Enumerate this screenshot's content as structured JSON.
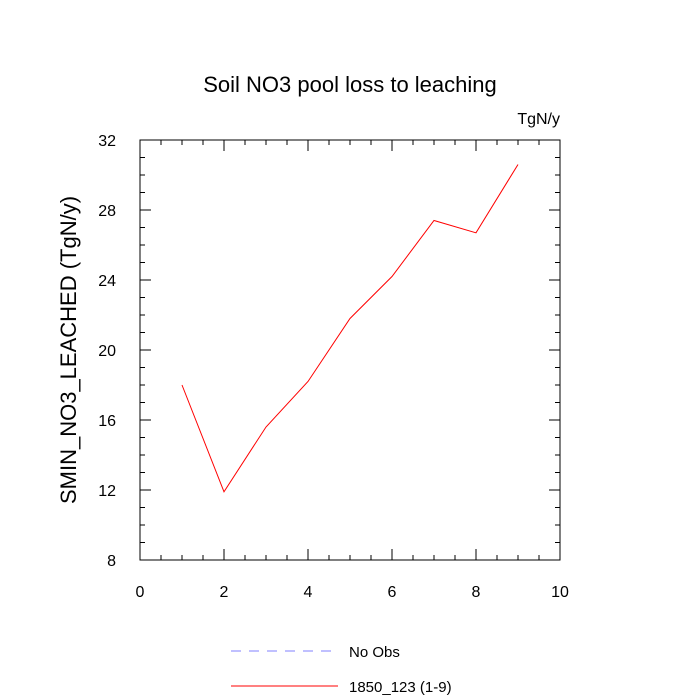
{
  "chart_data": {
    "type": "line",
    "title": "Soil NO3 pool loss to leaching",
    "units": "TgN/y",
    "ylabel": "SMIN_NO3_LEACHED  (TgN/y)",
    "xlabel": "",
    "xlim": [
      0,
      10
    ],
    "ylim": [
      8,
      32
    ],
    "x_ticks": [
      0,
      2,
      4,
      6,
      8,
      10
    ],
    "y_ticks": [
      8,
      12,
      16,
      20,
      24,
      28,
      32
    ],
    "grid": false,
    "legend_position": "bottom",
    "series": [
      {
        "name": "No Obs",
        "color": "#8080ff",
        "dashed": true,
        "x": [],
        "values": []
      },
      {
        "name": "1850_123 (1-9)",
        "color": "#ff0000",
        "dashed": false,
        "x": [
          1,
          2,
          3,
          4,
          5,
          6,
          7,
          8,
          9
        ],
        "values": [
          18.0,
          11.9,
          15.6,
          18.2,
          21.8,
          24.2,
          27.4,
          26.7,
          30.6
        ]
      }
    ]
  }
}
